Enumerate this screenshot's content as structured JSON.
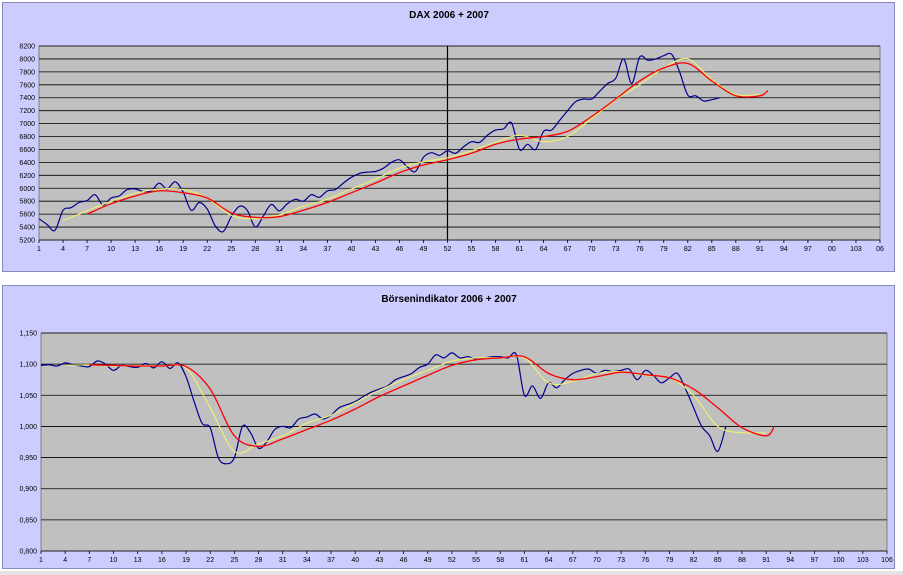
{
  "chart_data": [
    {
      "type": "line",
      "title": "DAX 2006 + 2007",
      "ylim": [
        5200,
        8200
      ],
      "yticks": [
        "8200",
        "8000",
        "7800",
        "7600",
        "7400",
        "7200",
        "7000",
        "6800",
        "6600",
        "6400",
        "6200",
        "6000",
        "5800",
        "5600",
        "5400",
        "5200"
      ],
      "xlim": [
        1,
        106
      ],
      "xticks": [
        "1",
        "4",
        "7",
        "10",
        "13",
        "16",
        "19",
        "22",
        "25",
        "28",
        "31",
        "34",
        "37",
        "40",
        "43",
        "46",
        "49",
        "52",
        "55",
        "58",
        "61",
        "64",
        "67",
        "70",
        "73",
        "76",
        "79",
        "82",
        "85",
        "88",
        "91",
        "94",
        "97",
        "100",
        "103",
        "106"
      ],
      "xtick_labels_shown": [
        "1",
        "4",
        "7",
        "10",
        "13",
        "16",
        "19",
        "22",
        "25",
        "28",
        "31",
        "34",
        "37",
        "40",
        "43",
        "46",
        "49",
        "52",
        "55",
        "58",
        "61",
        "64",
        "67",
        "70",
        "73",
        "76",
        "79",
        "82",
        "85",
        "88",
        "91",
        "94",
        "97",
        "00",
        "103",
        "06"
      ],
      "grid": true,
      "vertical_marker_x": 52,
      "colors": {
        "series1": "#000090",
        "series2": "#f0f070",
        "series3": "#ff0000",
        "plot_bg": "#c0c0c0",
        "panel_bg": "#ccccff"
      },
      "series": [
        {
          "x": [
            1,
            2,
            3,
            4,
            5,
            6,
            7,
            8,
            9,
            10,
            11,
            12,
            13,
            14,
            15,
            16,
            17,
            18,
            19,
            20,
            21,
            22,
            23,
            24,
            25,
            26,
            27,
            28,
            29,
            30,
            31,
            32,
            33,
            34,
            35,
            36,
            37,
            38,
            39,
            40,
            41,
            42,
            43,
            44,
            45,
            46,
            47,
            48,
            49,
            50,
            51,
            52,
            53,
            54,
            55,
            56,
            57,
            58,
            59,
            60,
            61,
            62,
            63,
            64,
            65,
            66,
            67,
            68,
            69,
            70,
            71,
            72,
            73,
            74,
            75,
            76,
            77,
            78,
            79,
            80,
            81,
            82,
            83,
            84,
            85,
            86
          ],
          "values": [
            5530,
            5440,
            5350,
            5660,
            5700,
            5780,
            5810,
            5900,
            5740,
            5850,
            5880,
            5980,
            5990,
            5950,
            5960,
            6080,
            5990,
            6100,
            5940,
            5660,
            5780,
            5680,
            5420,
            5330,
            5560,
            5720,
            5660,
            5400,
            5570,
            5750,
            5650,
            5760,
            5830,
            5800,
            5900,
            5860,
            5960,
            5980,
            6080,
            6170,
            6230,
            6250,
            6260,
            6310,
            6400,
            6440,
            6330,
            6260,
            6480,
            6550,
            6510,
            6580,
            6540,
            6640,
            6720,
            6710,
            6820,
            6900,
            6920,
            7010,
            6600,
            6680,
            6600,
            6880,
            6900,
            7050,
            7200,
            7340,
            7380,
            7380,
            7500,
            7620,
            7700,
            8000,
            7620,
            8030,
            7980,
            8000,
            8050,
            8070,
            7790,
            7440,
            7430,
            7350,
            7370,
            7400
          ]
        },
        {
          "x": [
            4,
            7,
            10,
            13,
            16,
            19,
            22,
            25,
            28,
            31,
            34,
            37,
            40,
            43,
            46,
            49,
            52,
            55,
            58,
            61,
            64,
            67,
            70,
            73,
            76,
            79,
            82,
            85,
            88,
            91
          ],
          "values": [
            5500,
            5650,
            5800,
            5920,
            5990,
            5980,
            5850,
            5580,
            5530,
            5590,
            5720,
            5830,
            5990,
            6140,
            6310,
            6410,
            6470,
            6580,
            6710,
            6820,
            6720,
            6800,
            7080,
            7370,
            7600,
            7860,
            8000,
            7680,
            7450,
            7450
          ]
        },
        {
          "x": [
            7,
            10,
            13,
            16,
            19,
            22,
            25,
            28,
            31,
            34,
            37,
            40,
            43,
            46,
            49,
            52,
            55,
            58,
            61,
            64,
            67,
            70,
            73,
            76,
            79,
            82,
            85,
            88,
            91,
            92
          ],
          "values": [
            5600,
            5760,
            5880,
            5960,
            5930,
            5850,
            5620,
            5550,
            5560,
            5660,
            5780,
            5930,
            6080,
            6240,
            6360,
            6440,
            6540,
            6680,
            6760,
            6800,
            6880,
            7110,
            7380,
            7660,
            7860,
            7930,
            7660,
            7430,
            7430,
            7510
          ]
        }
      ]
    },
    {
      "type": "line",
      "title": "Börsenindikator 2006 + 2007",
      "ylim": [
        0.8,
        1.15
      ],
      "yticks": [
        "1,150",
        "1,100",
        "1,050",
        "1,000",
        "0,950",
        "0,900",
        "0,850",
        "0,800"
      ],
      "ytick_labels_shown": [
        "1,150",
        "1,100",
        "1,050",
        "1,000",
        "0,950",
        "0,900",
        "0,850",
        "0,800"
      ],
      "xlim": [
        1,
        106
      ],
      "xticks": [
        "1",
        "4",
        "7",
        "10",
        "13",
        "16",
        "19",
        "22",
        "25",
        "28",
        "31",
        "34",
        "37",
        "40",
        "43",
        "46",
        "49",
        "52",
        "55",
        "58",
        "61",
        "64",
        "67",
        "70",
        "73",
        "76",
        "79",
        "82",
        "85",
        "88",
        "91",
        "94",
        "97",
        "100",
        "103",
        "106"
      ],
      "xtick_labels_shown": [
        "1",
        "4",
        "7",
        "10",
        "13",
        "16",
        "19",
        "22",
        "25",
        "28",
        "31",
        "34",
        "37",
        "40",
        "43",
        "46",
        "49",
        "52",
        "55",
        "58",
        "61",
        "64",
        "67",
        "70",
        "73",
        "76",
        "79",
        "82",
        "85",
        "88",
        "91",
        "94",
        "97",
        "100",
        "103",
        "106"
      ],
      "grid": true,
      "colors": {
        "series1": "#000090",
        "series2": "#f0f070",
        "series3": "#ff0000",
        "plot_bg": "#c0c0c0",
        "panel_bg": "#ccccff"
      },
      "series": [
        {
          "x": [
            1,
            2,
            3,
            4,
            5,
            6,
            7,
            8,
            9,
            10,
            11,
            12,
            13,
            14,
            15,
            16,
            17,
            18,
            19,
            20,
            21,
            22,
            23,
            24,
            25,
            26,
            27,
            28,
            29,
            30,
            31,
            32,
            33,
            34,
            35,
            36,
            37,
            38,
            39,
            40,
            41,
            42,
            43,
            44,
            45,
            46,
            47,
            48,
            49,
            50,
            51,
            52,
            53,
            54,
            55,
            56,
            57,
            58,
            59,
            60,
            61,
            62,
            63,
            64,
            65,
            66,
            67,
            68,
            69,
            70,
            71,
            72,
            73,
            74,
            75,
            76,
            77,
            78,
            79,
            80,
            81,
            82,
            83,
            84,
            85,
            86
          ],
          "values": [
            1.098,
            1.099,
            1.097,
            1.102,
            1.099,
            1.097,
            1.096,
            1.105,
            1.1,
            1.09,
            1.098,
            1.096,
            1.095,
            1.101,
            1.094,
            1.104,
            1.093,
            1.102,
            1.08,
            1.04,
            1.005,
            0.998,
            0.95,
            0.94,
            0.95,
            1.0,
            0.99,
            0.965,
            0.975,
            0.995,
            1.0,
            0.998,
            1.012,
            1.015,
            1.02,
            1.012,
            1.018,
            1.03,
            1.035,
            1.04,
            1.048,
            1.055,
            1.06,
            1.065,
            1.075,
            1.08,
            1.085,
            1.095,
            1.1,
            1.115,
            1.11,
            1.118,
            1.11,
            1.112,
            1.108,
            1.11,
            1.112,
            1.112,
            1.11,
            1.115,
            1.05,
            1.065,
            1.045,
            1.07,
            1.062,
            1.075,
            1.085,
            1.09,
            1.092,
            1.085,
            1.09,
            1.088,
            1.09,
            1.092,
            1.075,
            1.09,
            1.082,
            1.07,
            1.078,
            1.085,
            1.06,
            1.03,
            1.0,
            0.985,
            0.96,
            1.0
          ]
        },
        {
          "x": [
            4,
            7,
            10,
            13,
            16,
            19,
            22,
            25,
            28,
            31,
            34,
            37,
            40,
            43,
            46,
            49,
            52,
            55,
            58,
            61,
            64,
            67,
            70,
            73,
            76,
            79,
            82,
            85,
            88,
            91
          ],
          "values": [
            1.098,
            1.099,
            1.097,
            1.098,
            1.097,
            1.094,
            1.03,
            0.96,
            0.972,
            0.985,
            1.005,
            1.018,
            1.038,
            1.058,
            1.075,
            1.09,
            1.105,
            1.11,
            1.11,
            1.11,
            1.07,
            1.072,
            1.085,
            1.088,
            1.082,
            1.078,
            1.05,
            1.0,
            0.99,
            0.99
          ]
        },
        {
          "x": [
            7,
            10,
            13,
            16,
            19,
            22,
            25,
            28,
            31,
            34,
            37,
            40,
            43,
            46,
            49,
            52,
            55,
            58,
            61,
            64,
            67,
            70,
            73,
            76,
            79,
            82,
            85,
            88,
            91,
            92
          ],
          "values": [
            1.099,
            1.098,
            1.097,
            1.097,
            1.096,
            1.06,
            0.985,
            0.968,
            0.98,
            0.995,
            1.01,
            1.028,
            1.048,
            1.065,
            1.082,
            1.098,
            1.107,
            1.11,
            1.112,
            1.085,
            1.075,
            1.08,
            1.087,
            1.083,
            1.078,
            1.06,
            1.03,
            0.998,
            0.985,
            1.0
          ]
        }
      ]
    }
  ]
}
